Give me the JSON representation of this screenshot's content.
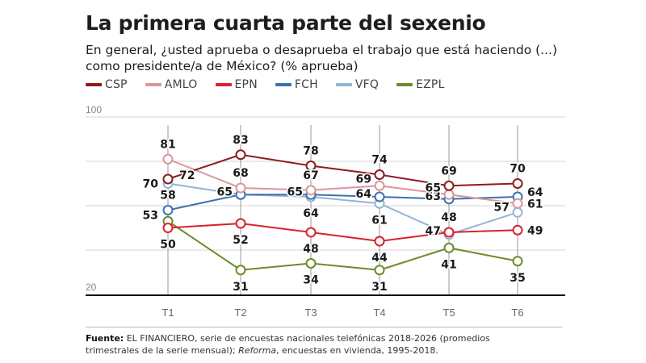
{
  "header": {
    "title": "La primera cuarta parte del sexenio",
    "subtitle": "En general, ¿usted aprueba o desaprueba el trabajo que está haciendo (...) como presidente/a de México? (% aprueba)"
  },
  "footer": {
    "source_label": "Fuente:",
    "source_text_1": " EL FINANCIERO, serie de encuestas nacionales telefónicas 2018-2026 (promedios trimestrales de la serie mensual); ",
    "source_italic": "Reforma",
    "source_text_2": ", encuestas en vivienda, 1995-2018."
  },
  "chart_data": {
    "type": "line",
    "title": "La primera cuarta parte del sexenio",
    "xlabel": "",
    "ylabel": "% aprueba",
    "ylim": [
      20,
      100
    ],
    "yticks_labeled": [
      20,
      100
    ],
    "gridlines": [
      20,
      40,
      60,
      80,
      100
    ],
    "grid": true,
    "legend_position": "top-left",
    "categories": [
      "T1",
      "T2",
      "T3",
      "T4",
      "T5",
      "T6"
    ],
    "series": [
      {
        "name": "CSP",
        "color": "#8e1b1f",
        "values": [
          72,
          83,
          78,
          74,
          69,
          70
        ]
      },
      {
        "name": "AMLO",
        "color": "#d9979b",
        "values": [
          81,
          68,
          67,
          69,
          65,
          61
        ]
      },
      {
        "name": "EPN",
        "color": "#d8232c",
        "values": [
          50,
          52,
          48,
          44,
          48,
          49
        ]
      },
      {
        "name": "FCH",
        "color": "#3d71b0",
        "values": [
          58,
          65,
          65,
          64,
          63,
          64
        ]
      },
      {
        "name": "VFQ",
        "color": "#93b5d8",
        "values": [
          70,
          65,
          64,
          61,
          47,
          57
        ]
      },
      {
        "name": "EZPL",
        "color": "#6e8b2c",
        "values": [
          53,
          31,
          34,
          31,
          41,
          35
        ]
      }
    ]
  }
}
